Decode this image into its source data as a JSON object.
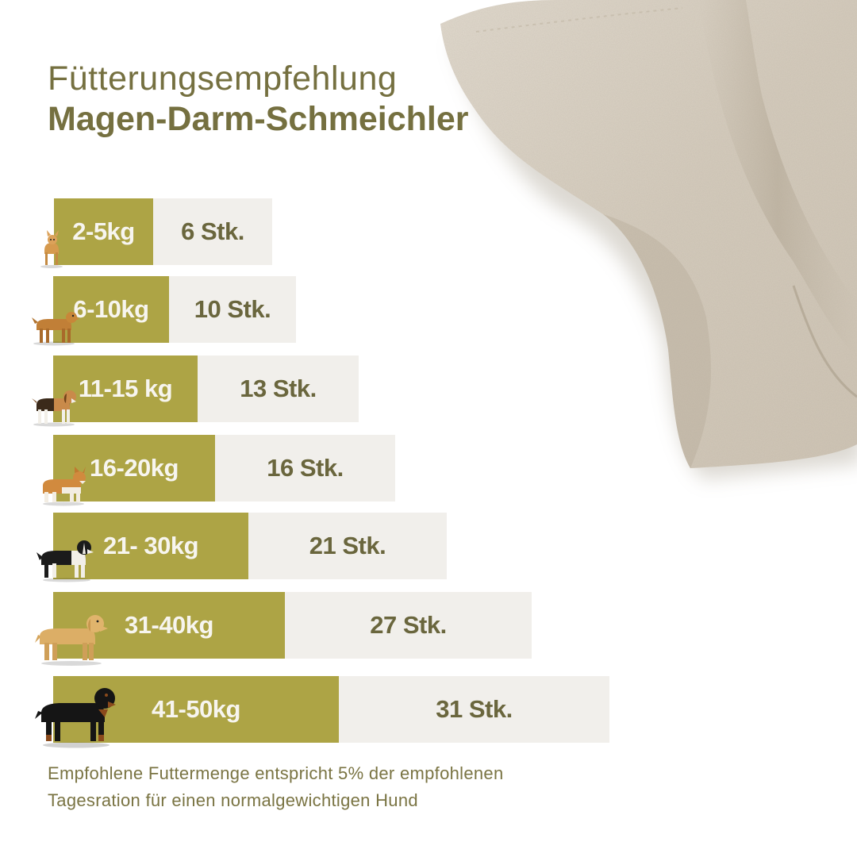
{
  "header": {
    "title": "Fütterungsempfehlung",
    "subtitle": "Magen-Darm-Schmeichler"
  },
  "rows": [
    {
      "weight": "2-5kg",
      "amount": "6 Stk.",
      "dog_icon": "chihuahua-icon"
    },
    {
      "weight": "6-10kg",
      "amount": "10 Stk.",
      "dog_icon": "small-dog-icon"
    },
    {
      "weight": "11-15 kg",
      "amount": "13 Stk.",
      "dog_icon": "beagle-icon"
    },
    {
      "weight": "16-20kg",
      "amount": "16 Stk.",
      "dog_icon": "corgi-icon"
    },
    {
      "weight": "21- 30kg",
      "amount": "21 Stk.",
      "dog_icon": "border-collie-icon"
    },
    {
      "weight": "31-40kg",
      "amount": "27 Stk.",
      "dog_icon": "labrador-icon"
    },
    {
      "weight": "41-50kg",
      "amount": "31 Stk.",
      "dog_icon": "rottweiler-icon"
    }
  ],
  "footer": {
    "line1": "Empfohlene Futtermenge entspricht 5% der empfohlenen",
    "line2": "Tagesration für einen normalgewichtigen Hund"
  },
  "colors": {
    "olive": "#ada445",
    "light": "#f1efeb",
    "text_olive": "#757040",
    "cloth": "#d8cfc2"
  }
}
